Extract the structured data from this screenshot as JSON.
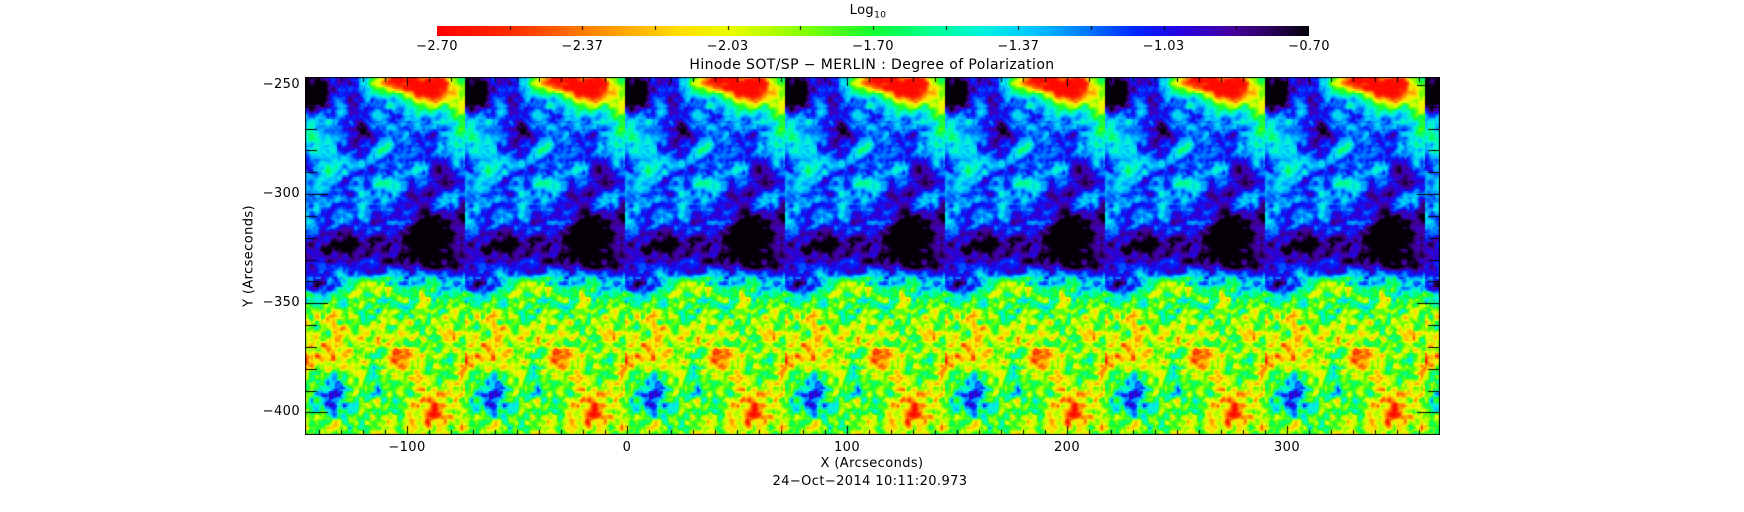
{
  "figure": {
    "title": "Hinode SOT/SP − MERLIN : Degree of Polarization",
    "timestamp": "24−Oct−2014 10:11:20.973",
    "background": "#ffffff"
  },
  "colorbar": {
    "label": "Log",
    "label_sub": "10",
    "min": -2.7,
    "max": -0.7,
    "ticks": [
      "−2.70",
      "−2.37",
      "−2.03",
      "−1.70",
      "−1.37",
      "−1.03",
      "−0.70"
    ],
    "stops": [
      [
        0.0,
        "#ff0000"
      ],
      [
        0.09,
        "#ff3000"
      ],
      [
        0.18,
        "#ff8800"
      ],
      [
        0.28,
        "#ffe000"
      ],
      [
        0.34,
        "#e8ff00"
      ],
      [
        0.42,
        "#84ff00"
      ],
      [
        0.5,
        "#12ff30"
      ],
      [
        0.57,
        "#00ff95"
      ],
      [
        0.63,
        "#00f0e0"
      ],
      [
        0.68,
        "#00c8ff"
      ],
      [
        0.74,
        "#0080ff"
      ],
      [
        0.8,
        "#0028ff"
      ],
      [
        0.855,
        "#2600e0"
      ],
      [
        0.91,
        "#4600a0"
      ],
      [
        0.955,
        "#2c0060"
      ],
      [
        1.0,
        "#050008"
      ]
    ]
  },
  "axes": {
    "x_label": "X (Arcseconds)",
    "y_label": "Y (Arcseconds)",
    "x_ticks": [
      {
        "value": -100,
        "label": "−100"
      },
      {
        "value": 0,
        "label": "0"
      },
      {
        "value": 100,
        "label": "100"
      },
      {
        "value": 200,
        "label": "200"
      },
      {
        "value": 300,
        "label": "300"
      }
    ],
    "y_ticks": [
      {
        "value": -250,
        "label": "−250"
      },
      {
        "value": -300,
        "label": "−300"
      },
      {
        "value": -350,
        "label": "−350"
      },
      {
        "value": -400,
        "label": "−400"
      }
    ],
    "x_minor_step": 10,
    "y_minor_step": 10,
    "x_range": [
      -146.4,
      369.5
    ],
    "y_range": [
      -410.5,
      -246.3
    ]
  },
  "chart_data": {
    "type": "heatmap",
    "title": "Hinode SOT/SP − MERLIN : Degree of Polarization",
    "xlabel": "X (Arcseconds)",
    "ylabel": "Y (Arcseconds)",
    "xlim": [
      -146.4,
      369.5
    ],
    "ylim": [
      -410.5,
      -246.3
    ],
    "x_tick_values": [
      -100,
      0,
      100,
      200,
      300
    ],
    "y_tick_values": [
      -250,
      -300,
      -350,
      -400
    ],
    "colorbar": {
      "label": "Log10",
      "range": [
        -2.7,
        -0.7
      ],
      "tick_values": [
        -2.7,
        -2.37,
        -2.03,
        -1.7,
        -1.37,
        -1.03,
        -0.7
      ],
      "colormap": "rainbow: red (low, −2.70) → yellow → green → cyan → blue → violet → black (high, −0.70)"
    },
    "panels": 7,
    "panel_width_arcsec": 72.7,
    "timestamp": "24−Oct−2014 10:11:20.973",
    "value_description": "Log10 degree of polarization map, identical scan tile repeated 7 times plus clipped strip; upper half dominated by high polarization (blue/violet) network with dark violet plage cores and a red low-polarization patch at the top right of each tile; lower half quiet-sun granulation with low polarization (green/yellow/orange/red) and scattered blue network points; dark violet band across tile middle"
  }
}
